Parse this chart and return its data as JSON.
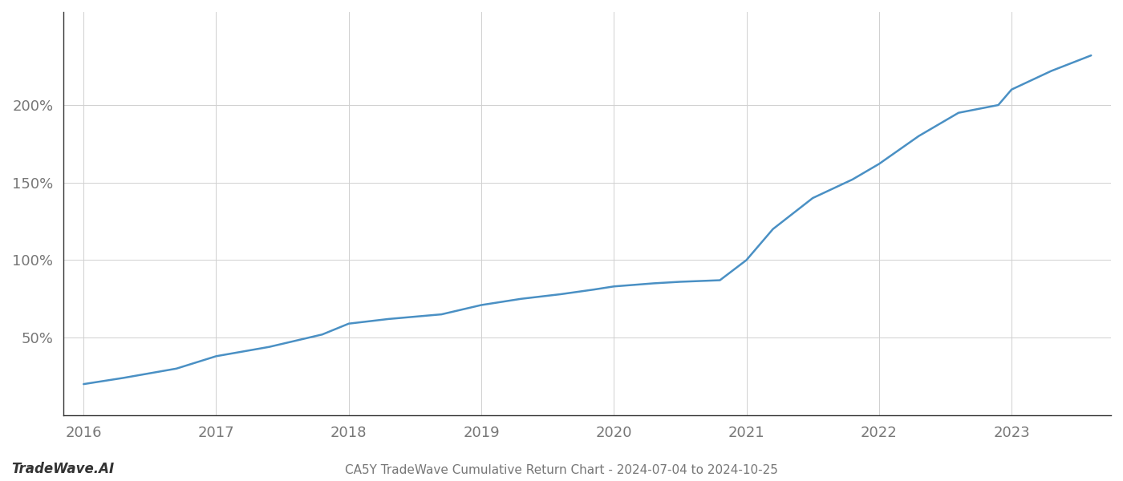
{
  "title": "CA5Y TradeWave Cumulative Return Chart - 2024-07-04 to 2024-10-25",
  "watermark": "TradeWave.AI",
  "line_color": "#4a90c4",
  "background_color": "#ffffff",
  "grid_color": "#d0d0d0",
  "x_years": [
    2016,
    2017,
    2018,
    2019,
    2020,
    2021,
    2022,
    2023
  ],
  "x_values": [
    2016.0,
    2016.3,
    2016.7,
    2017.0,
    2017.4,
    2017.8,
    2018.0,
    2018.3,
    2018.7,
    2019.0,
    2019.3,
    2019.6,
    2019.85,
    2020.0,
    2020.15,
    2020.3,
    2020.5,
    2020.8,
    2021.0,
    2021.2,
    2021.5,
    2021.8,
    2022.0,
    2022.3,
    2022.6,
    2022.9,
    2023.0,
    2023.3,
    2023.6
  ],
  "y_values": [
    20,
    24,
    30,
    38,
    44,
    52,
    59,
    62,
    65,
    71,
    75,
    78,
    81,
    83,
    84,
    85,
    86,
    87,
    100,
    120,
    140,
    152,
    162,
    180,
    195,
    200,
    210,
    222,
    232
  ],
  "ylim": [
    0,
    260
  ],
  "yticks": [
    50,
    100,
    150,
    200
  ],
  "xlim": [
    2015.85,
    2023.75
  ],
  "title_fontsize": 11,
  "watermark_fontsize": 12,
  "tick_fontsize": 13,
  "line_width": 1.8,
  "spine_color": "#333333"
}
